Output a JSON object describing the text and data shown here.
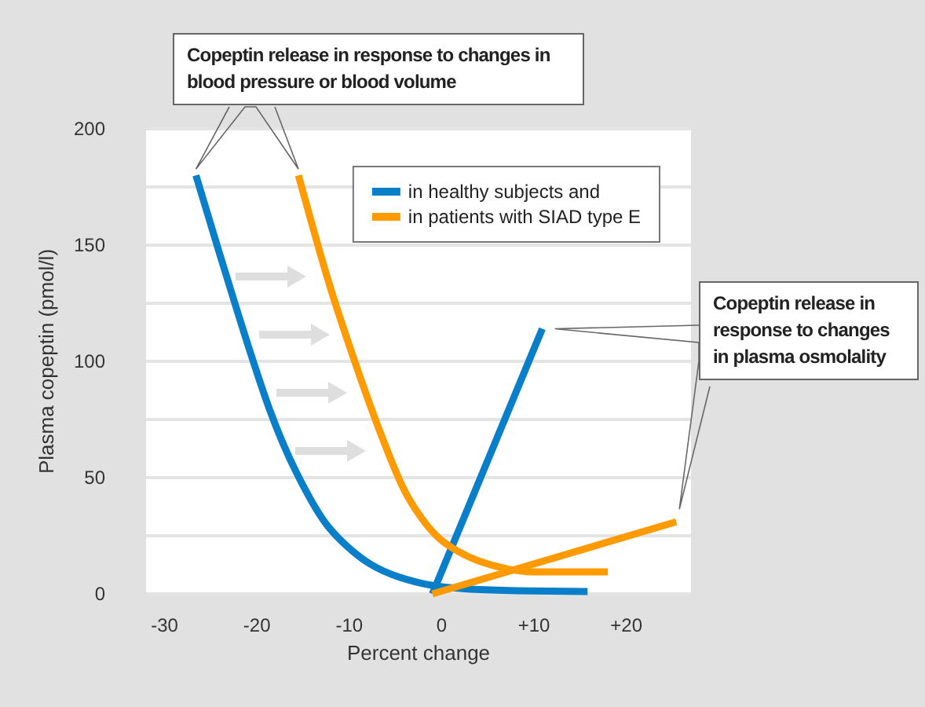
{
  "chart_data": {
    "type": "line",
    "xlabel": "Percent change",
    "ylabel": "Plasma copeptin (pmol/l)",
    "xlim": [
      -32,
      27
    ],
    "xticks": [
      -30,
      -20,
      -10,
      0,
      {
        "value": 10,
        "label": "+10"
      },
      {
        "value": 20,
        "label": "+20"
      }
    ],
    "ylim": [
      0,
      200
    ],
    "yticks": [
      0,
      {
        "value": 25,
        "label": null
      },
      50,
      {
        "value": 75,
        "label": null
      },
      100,
      {
        "value": 125,
        "label": null
      },
      150,
      {
        "value": 175,
        "label": null
      },
      200
    ],
    "grid": "y",
    "legend": "top right",
    "marker": "none",
    "line_style": "solid",
    "series": [
      {
        "name": "in healthy subjects and",
        "color": "#0a7fc9",
        "x": [
          -26.6,
          -22,
          -18.6,
          -15.7,
          -12.3,
          -7.8,
          -2.7,
          3.1,
          15.8
        ],
        "values": [
          180,
          120,
          79,
          52,
          29,
          13,
          5,
          2,
          1
        ]
      },
      {
        "color": "#0a7fc9",
        "x": [
          -1,
          10.9
        ],
        "values": [
          0,
          114
        ]
      },
      {
        "name": "in patients with SIAD type E",
        "color": "#ff9a00",
        "x": [
          -15.5,
          -12.3,
          -9.5,
          -6.6,
          -3.7,
          -0.3,
          4.1,
          9.9,
          18
        ],
        "values": [
          180,
          135,
          101,
          69,
          42,
          24,
          14,
          9.5,
          9.5
        ]
      },
      {
        "color": "#ff9a00",
        "x": [
          -1,
          25.4
        ],
        "values": [
          0,
          31
        ]
      }
    ],
    "annotations": [
      "Copeptin release in response to changes in blood pressure or blood volume",
      "Copeptin release in response to changes in plasma osmolality"
    ]
  }
}
